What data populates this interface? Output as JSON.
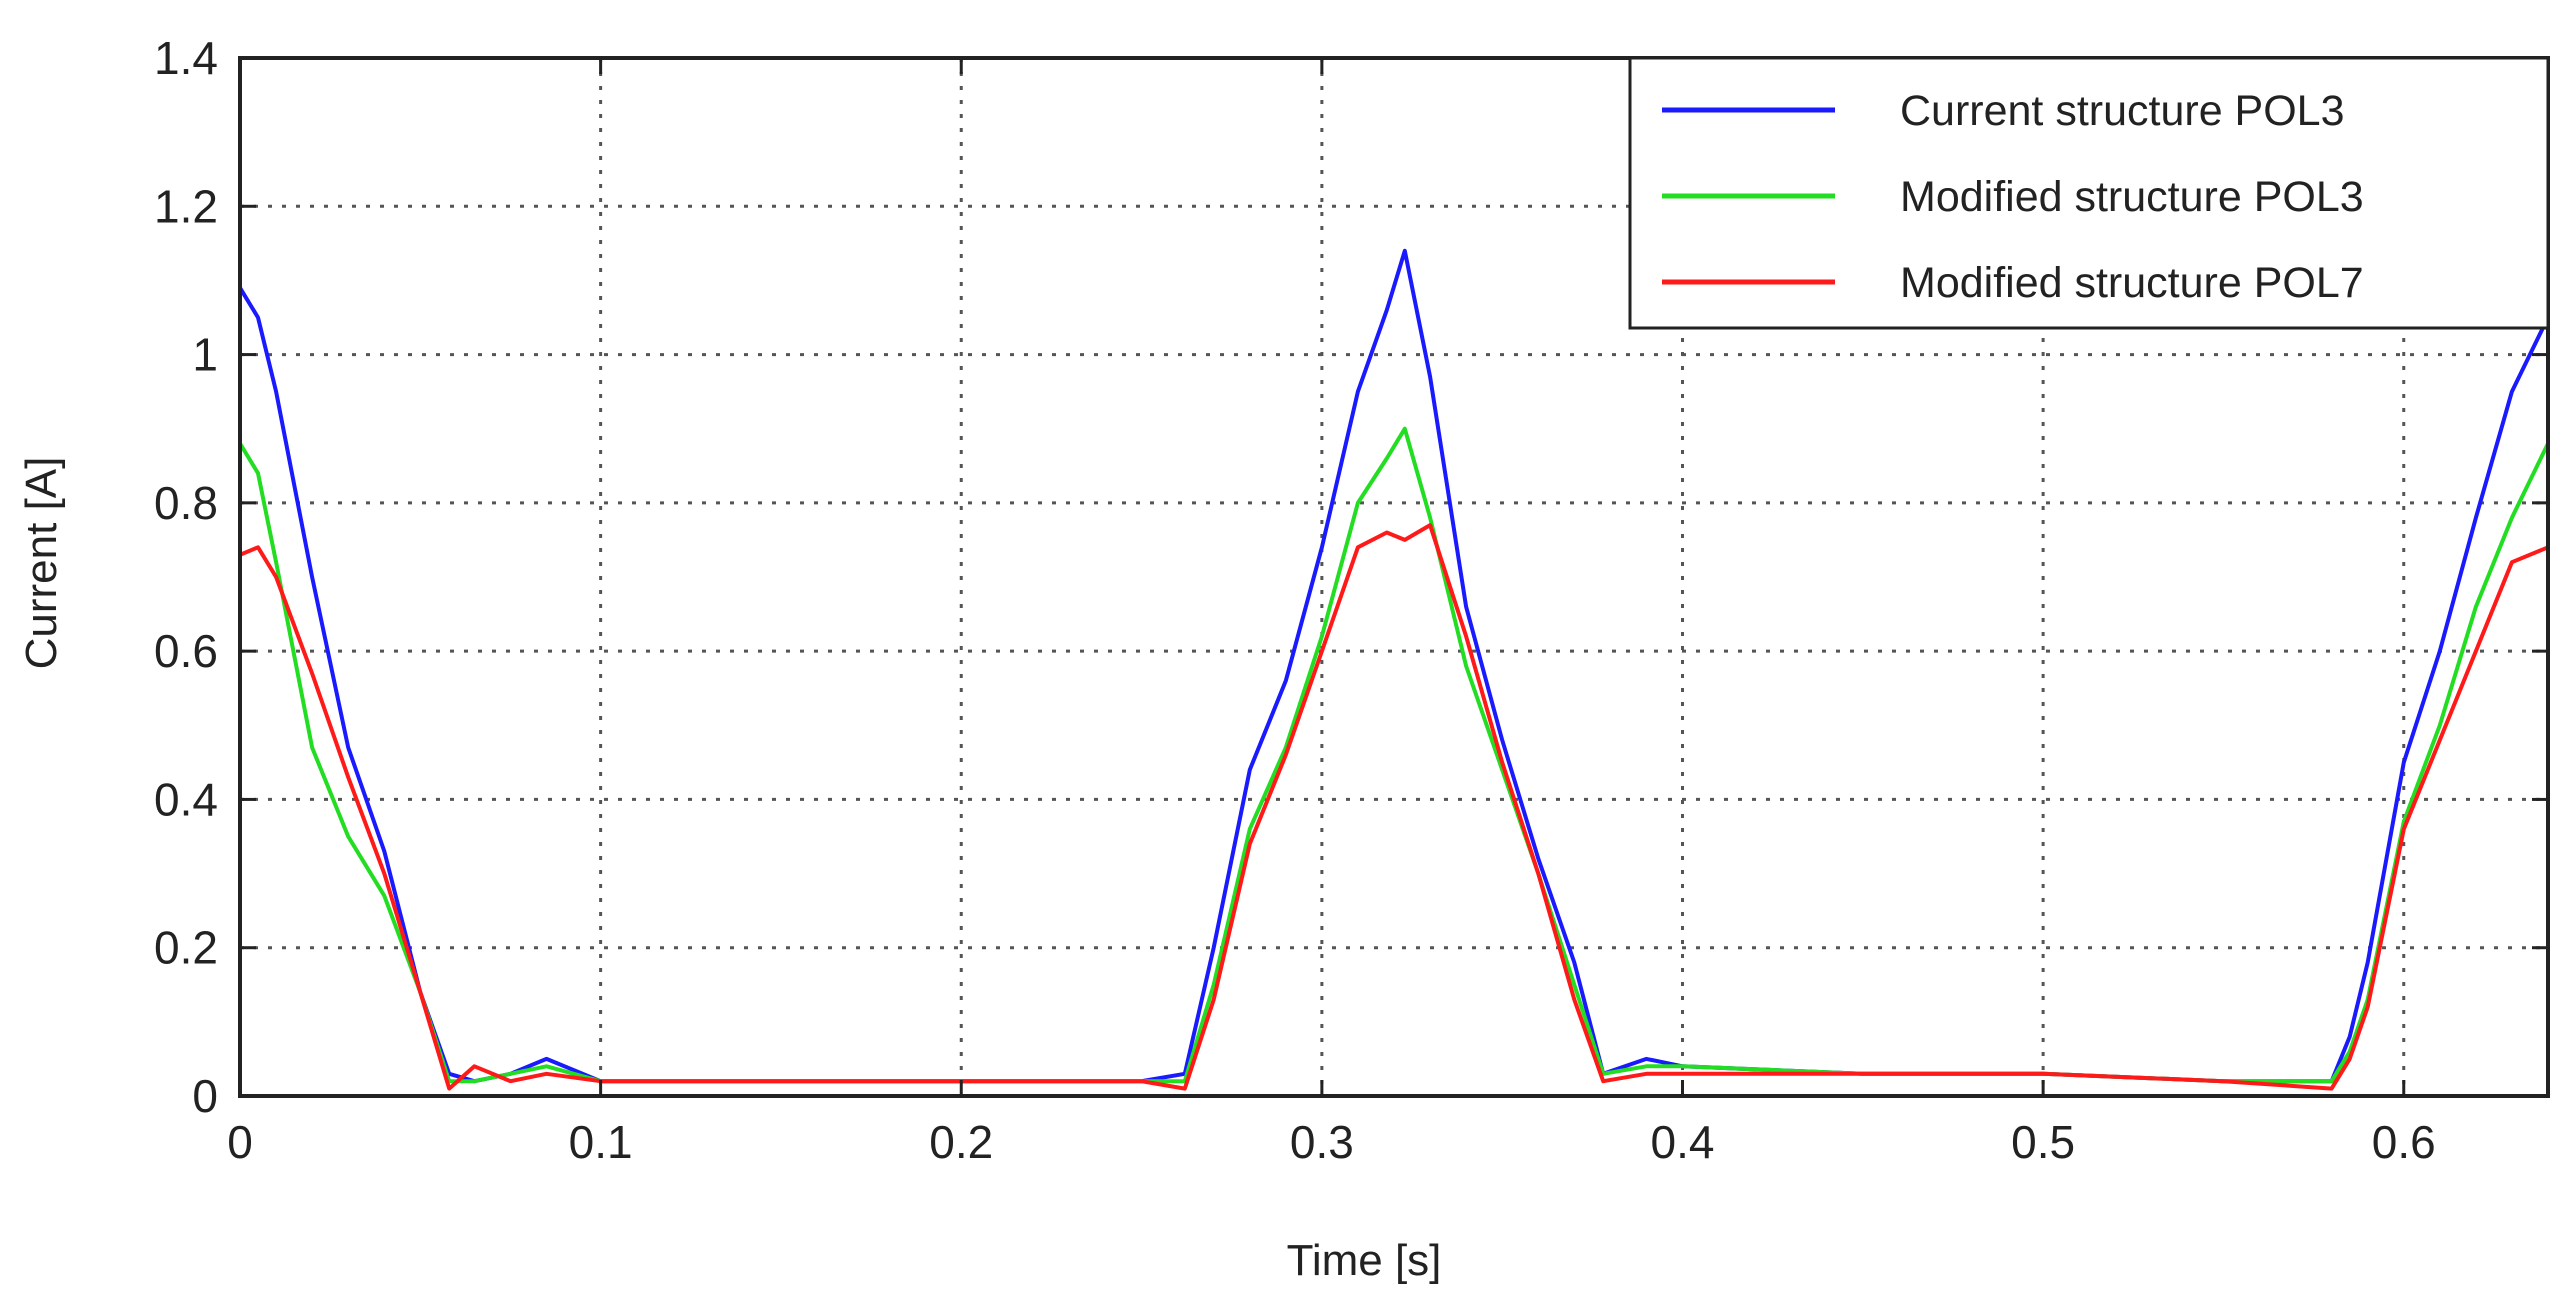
{
  "chart_data": {
    "type": "line",
    "title": "",
    "xlabel": "Time [s]",
    "ylabel": "Current [A]",
    "xlim": [
      0,
      0.64
    ],
    "ylim": [
      0,
      1.4
    ],
    "xticks": [
      0,
      0.1,
      0.2,
      0.3,
      0.4,
      0.5,
      0.6
    ],
    "xtick_labels": [
      "0",
      "0.1",
      "0.2",
      "0.3",
      "0.4",
      "0.5",
      "0.6"
    ],
    "yticks": [
      0,
      0.2,
      0.4,
      0.6,
      0.8,
      1.0,
      1.2,
      1.4
    ],
    "ytick_labels": [
      "0",
      "0.2",
      "0.4",
      "0.6",
      "0.8",
      "1",
      "1.2",
      "1.4"
    ],
    "grid": true,
    "legend_position": "top-right",
    "series": [
      {
        "name": "Current structure POL3",
        "color": "#1a1aff",
        "x": [
          0,
          0.005,
          0.01,
          0.02,
          0.03,
          0.04,
          0.05,
          0.058,
          0.065,
          0.075,
          0.085,
          0.1,
          0.15,
          0.2,
          0.25,
          0.262,
          0.27,
          0.28,
          0.29,
          0.3,
          0.31,
          0.318,
          0.323,
          0.33,
          0.34,
          0.35,
          0.36,
          0.37,
          0.378,
          0.39,
          0.4,
          0.45,
          0.5,
          0.55,
          0.58,
          0.585,
          0.59,
          0.6,
          0.61,
          0.62,
          0.63,
          0.64
        ],
        "y": [
          1.09,
          1.05,
          0.95,
          0.7,
          0.47,
          0.33,
          0.14,
          0.03,
          0.02,
          0.03,
          0.05,
          0.02,
          0.02,
          0.02,
          0.02,
          0.03,
          0.2,
          0.44,
          0.56,
          0.74,
          0.95,
          1.06,
          1.14,
          0.97,
          0.66,
          0.48,
          0.32,
          0.18,
          0.03,
          0.05,
          0.04,
          0.03,
          0.03,
          0.02,
          0.02,
          0.08,
          0.18,
          0.45,
          0.6,
          0.78,
          0.95,
          1.05
        ]
      },
      {
        "name": "Modified structure POL3",
        "color": "#22dd22",
        "x": [
          0,
          0.005,
          0.01,
          0.02,
          0.03,
          0.04,
          0.05,
          0.058,
          0.065,
          0.075,
          0.085,
          0.1,
          0.15,
          0.2,
          0.25,
          0.262,
          0.27,
          0.28,
          0.29,
          0.3,
          0.31,
          0.318,
          0.323,
          0.33,
          0.34,
          0.35,
          0.36,
          0.37,
          0.378,
          0.39,
          0.4,
          0.45,
          0.5,
          0.55,
          0.58,
          0.585,
          0.59,
          0.6,
          0.61,
          0.62,
          0.63,
          0.64
        ],
        "y": [
          0.88,
          0.84,
          0.72,
          0.47,
          0.35,
          0.27,
          0.14,
          0.02,
          0.02,
          0.03,
          0.04,
          0.02,
          0.02,
          0.02,
          0.02,
          0.02,
          0.15,
          0.36,
          0.47,
          0.62,
          0.8,
          0.86,
          0.9,
          0.78,
          0.58,
          0.44,
          0.3,
          0.15,
          0.03,
          0.04,
          0.04,
          0.03,
          0.03,
          0.02,
          0.02,
          0.06,
          0.13,
          0.37,
          0.5,
          0.66,
          0.78,
          0.88
        ]
      },
      {
        "name": "Modified structure POL7",
        "color": "#ff1a1a",
        "x": [
          0,
          0.005,
          0.01,
          0.02,
          0.03,
          0.04,
          0.05,
          0.058,
          0.065,
          0.075,
          0.085,
          0.1,
          0.15,
          0.2,
          0.25,
          0.262,
          0.27,
          0.28,
          0.29,
          0.3,
          0.31,
          0.318,
          0.323,
          0.33,
          0.34,
          0.35,
          0.36,
          0.37,
          0.378,
          0.39,
          0.4,
          0.45,
          0.5,
          0.55,
          0.58,
          0.585,
          0.59,
          0.6,
          0.61,
          0.62,
          0.63,
          0.64
        ],
        "y": [
          0.73,
          0.74,
          0.7,
          0.57,
          0.43,
          0.3,
          0.14,
          0.01,
          0.04,
          0.02,
          0.03,
          0.02,
          0.02,
          0.02,
          0.02,
          0.01,
          0.13,
          0.34,
          0.46,
          0.6,
          0.74,
          0.76,
          0.75,
          0.77,
          0.62,
          0.45,
          0.3,
          0.13,
          0.02,
          0.03,
          0.03,
          0.03,
          0.03,
          0.02,
          0.01,
          0.05,
          0.12,
          0.36,
          0.48,
          0.6,
          0.72,
          0.74
        ]
      }
    ]
  }
}
